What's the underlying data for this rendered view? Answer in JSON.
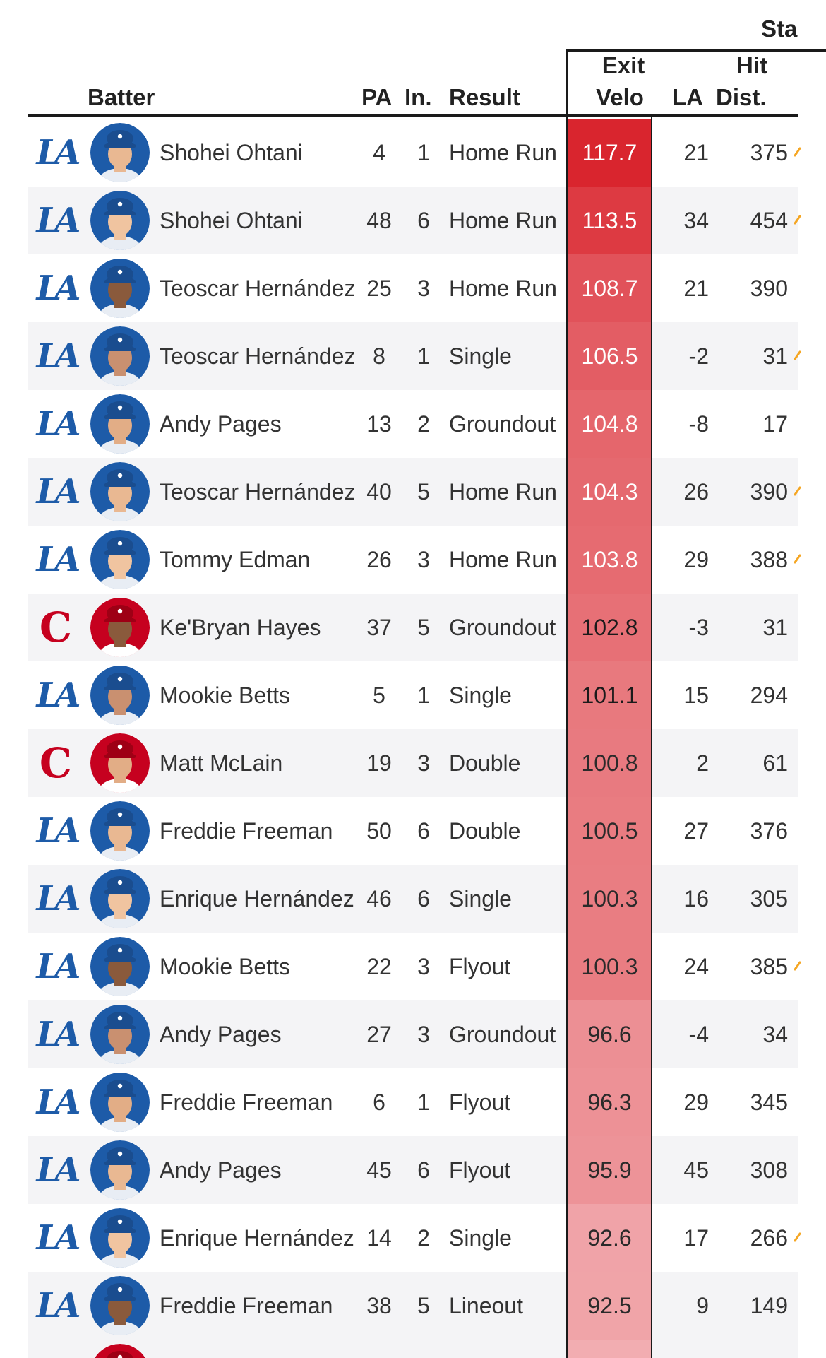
{
  "header": {
    "stats_label": "Sta",
    "batter": "Batter",
    "pa": "PA",
    "inning": "In.",
    "result": "Result",
    "exit_line1": "Exit",
    "exit_line2": "Velo",
    "la": "LA",
    "dist_line1": "Hit",
    "dist_line2": "Dist."
  },
  "colors": {
    "dodgers_blue": "#1d5ba8",
    "reds_red": "#c6011f",
    "velo_max": "#d9252e",
    "velo_min": "#f0a4a8",
    "spark_orange": "#f5a623"
  },
  "rows": [
    {
      "team": "LAD",
      "team_logo": "la-logo-icon",
      "batter": "Shohei Ohtani",
      "pa": "4",
      "inning": "1",
      "result": "Home Run",
      "exit_velo": "117.7",
      "la": "21",
      "dist": "375",
      "spark": true
    },
    {
      "team": "LAD",
      "team_logo": "la-logo-icon",
      "batter": "Shohei Ohtani",
      "pa": "48",
      "inning": "6",
      "result": "Home Run",
      "exit_velo": "113.5",
      "la": "34",
      "dist": "454",
      "spark": true
    },
    {
      "team": "LAD",
      "team_logo": "la-logo-icon",
      "batter": "Teoscar Hernández",
      "pa": "25",
      "inning": "3",
      "result": "Home Run",
      "exit_velo": "108.7",
      "la": "21",
      "dist": "390",
      "spark": false
    },
    {
      "team": "LAD",
      "team_logo": "la-logo-icon",
      "batter": "Teoscar Hernández",
      "pa": "8",
      "inning": "1",
      "result": "Single",
      "exit_velo": "106.5",
      "la": "-2",
      "dist": "31",
      "spark": true
    },
    {
      "team": "LAD",
      "team_logo": "la-logo-icon",
      "batter": "Andy Pages",
      "pa": "13",
      "inning": "2",
      "result": "Groundout",
      "exit_velo": "104.8",
      "la": "-8",
      "dist": "17",
      "spark": false
    },
    {
      "team": "LAD",
      "team_logo": "la-logo-icon",
      "batter": "Teoscar Hernández",
      "pa": "40",
      "inning": "5",
      "result": "Home Run",
      "exit_velo": "104.3",
      "la": "26",
      "dist": "390",
      "spark": true
    },
    {
      "team": "LAD",
      "team_logo": "la-logo-icon",
      "batter": "Tommy Edman",
      "pa": "26",
      "inning": "3",
      "result": "Home Run",
      "exit_velo": "103.8",
      "la": "29",
      "dist": "388",
      "spark": true
    },
    {
      "team": "CIN",
      "team_logo": "reds-logo-icon",
      "batter": "Ke'Bryan Hayes",
      "pa": "37",
      "inning": "5",
      "result": "Groundout",
      "exit_velo": "102.8",
      "la": "-3",
      "dist": "31",
      "spark": false
    },
    {
      "team": "LAD",
      "team_logo": "la-logo-icon",
      "batter": "Mookie Betts",
      "pa": "5",
      "inning": "1",
      "result": "Single",
      "exit_velo": "101.1",
      "la": "15",
      "dist": "294",
      "spark": false
    },
    {
      "team": "CIN",
      "team_logo": "reds-logo-icon",
      "batter": "Matt McLain",
      "pa": "19",
      "inning": "3",
      "result": "Double",
      "exit_velo": "100.8",
      "la": "2",
      "dist": "61",
      "spark": false
    },
    {
      "team": "LAD",
      "team_logo": "la-logo-icon",
      "batter": "Freddie Freeman",
      "pa": "50",
      "inning": "6",
      "result": "Double",
      "exit_velo": "100.5",
      "la": "27",
      "dist": "376",
      "spark": false
    },
    {
      "team": "LAD",
      "team_logo": "la-logo-icon",
      "batter": "Enrique Hernández",
      "pa": "46",
      "inning": "6",
      "result": "Single",
      "exit_velo": "100.3",
      "la": "16",
      "dist": "305",
      "spark": false
    },
    {
      "team": "LAD",
      "team_logo": "la-logo-icon",
      "batter": "Mookie Betts",
      "pa": "22",
      "inning": "3",
      "result": "Flyout",
      "exit_velo": "100.3",
      "la": "24",
      "dist": "385",
      "spark": true
    },
    {
      "team": "LAD",
      "team_logo": "la-logo-icon",
      "batter": "Andy Pages",
      "pa": "27",
      "inning": "3",
      "result": "Groundout",
      "exit_velo": "96.6",
      "la": "-4",
      "dist": "34",
      "spark": false
    },
    {
      "team": "LAD",
      "team_logo": "la-logo-icon",
      "batter": "Freddie Freeman",
      "pa": "6",
      "inning": "1",
      "result": "Flyout",
      "exit_velo": "96.3",
      "la": "29",
      "dist": "345",
      "spark": false
    },
    {
      "team": "LAD",
      "team_logo": "la-logo-icon",
      "batter": "Andy Pages",
      "pa": "45",
      "inning": "6",
      "result": "Flyout",
      "exit_velo": "95.9",
      "la": "45",
      "dist": "308",
      "spark": false
    },
    {
      "team": "LAD",
      "team_logo": "la-logo-icon",
      "batter": "Enrique Hernández",
      "pa": "14",
      "inning": "2",
      "result": "Single",
      "exit_velo": "92.6",
      "la": "17",
      "dist": "266",
      "spark": true
    },
    {
      "team": "LAD",
      "team_logo": "la-logo-icon",
      "batter": "Freddie Freeman",
      "pa": "38",
      "inning": "5",
      "result": "Lineout",
      "exit_velo": "92.5",
      "la": "9",
      "dist": "149",
      "spark": false
    }
  ],
  "partial_row": {
    "team": "CIN",
    "team_logo": "reds-logo-icon"
  }
}
